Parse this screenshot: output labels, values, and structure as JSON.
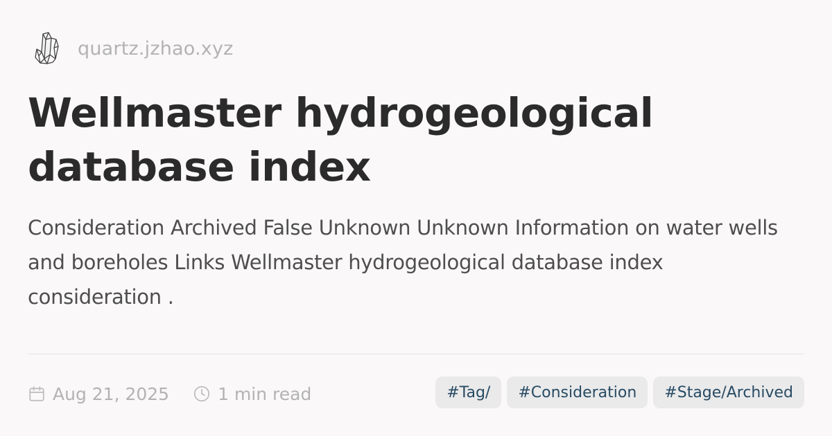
{
  "site": {
    "name": "quartz.jzhao.xyz",
    "logo_icon": "crystal-icon"
  },
  "page": {
    "title": "Wellmaster hydrogeological database index",
    "description": "Consideration Archived False Unknown Unknown Information on water wells and boreholes Links Wellmaster hydrogeological database index consideration ."
  },
  "meta": {
    "date": "Aug 21, 2025",
    "date_icon": "calendar-icon",
    "read_time": "1 min read",
    "read_time_icon": "clock-icon"
  },
  "tags": [
    {
      "label": "#Tag/"
    },
    {
      "label": "#Consideration"
    },
    {
      "label": "#Stage/Archived"
    }
  ],
  "colors": {
    "background": "#faf8f8",
    "title": "#2b2b2b",
    "body": "#4e4e4e",
    "muted": "#b3b3b3",
    "tag_bg": "#eaeaeb",
    "tag_text": "#284b63"
  }
}
